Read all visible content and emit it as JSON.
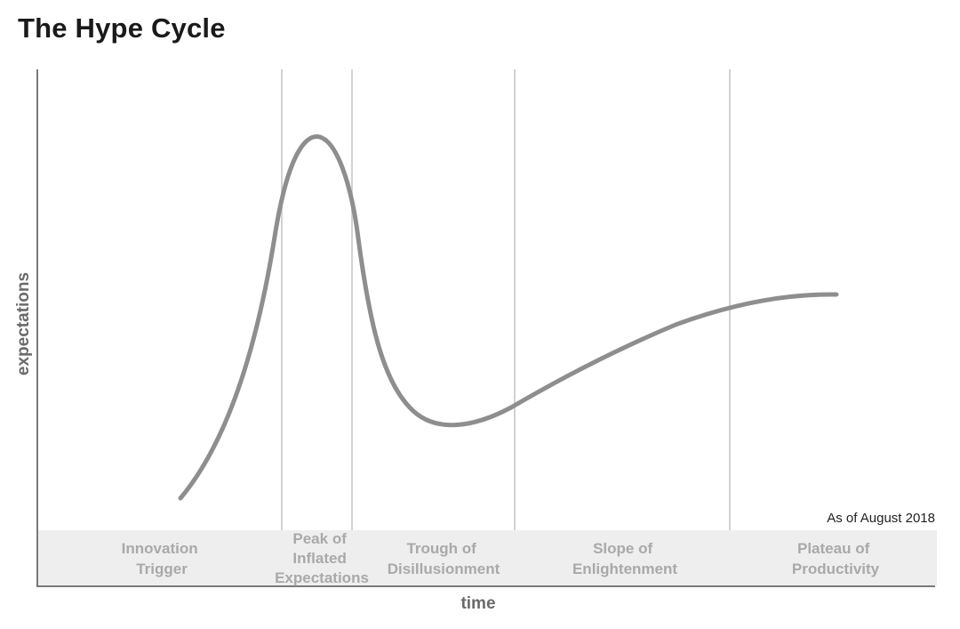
{
  "title": "The Hype Cycle",
  "y_axis_label": "expectations",
  "x_axis_label": "time",
  "note": "As of August 2018",
  "phases": [
    {
      "lines": [
        "Innovation",
        "Trigger"
      ]
    },
    {
      "lines": [
        "Peak of",
        "Inflated",
        "Expectations"
      ]
    },
    {
      "lines": [
        "Trough of",
        "Disillusionment"
      ]
    },
    {
      "lines": [
        "Slope of",
        "Enlightenment"
      ]
    },
    {
      "lines": [
        "Plateau of",
        "Productivity"
      ]
    }
  ],
  "colors": {
    "curve": "#8e8e8e",
    "divider": "#d2d2d2",
    "band": "#eeeeee",
    "axis": "#7a7a7a"
  }
}
